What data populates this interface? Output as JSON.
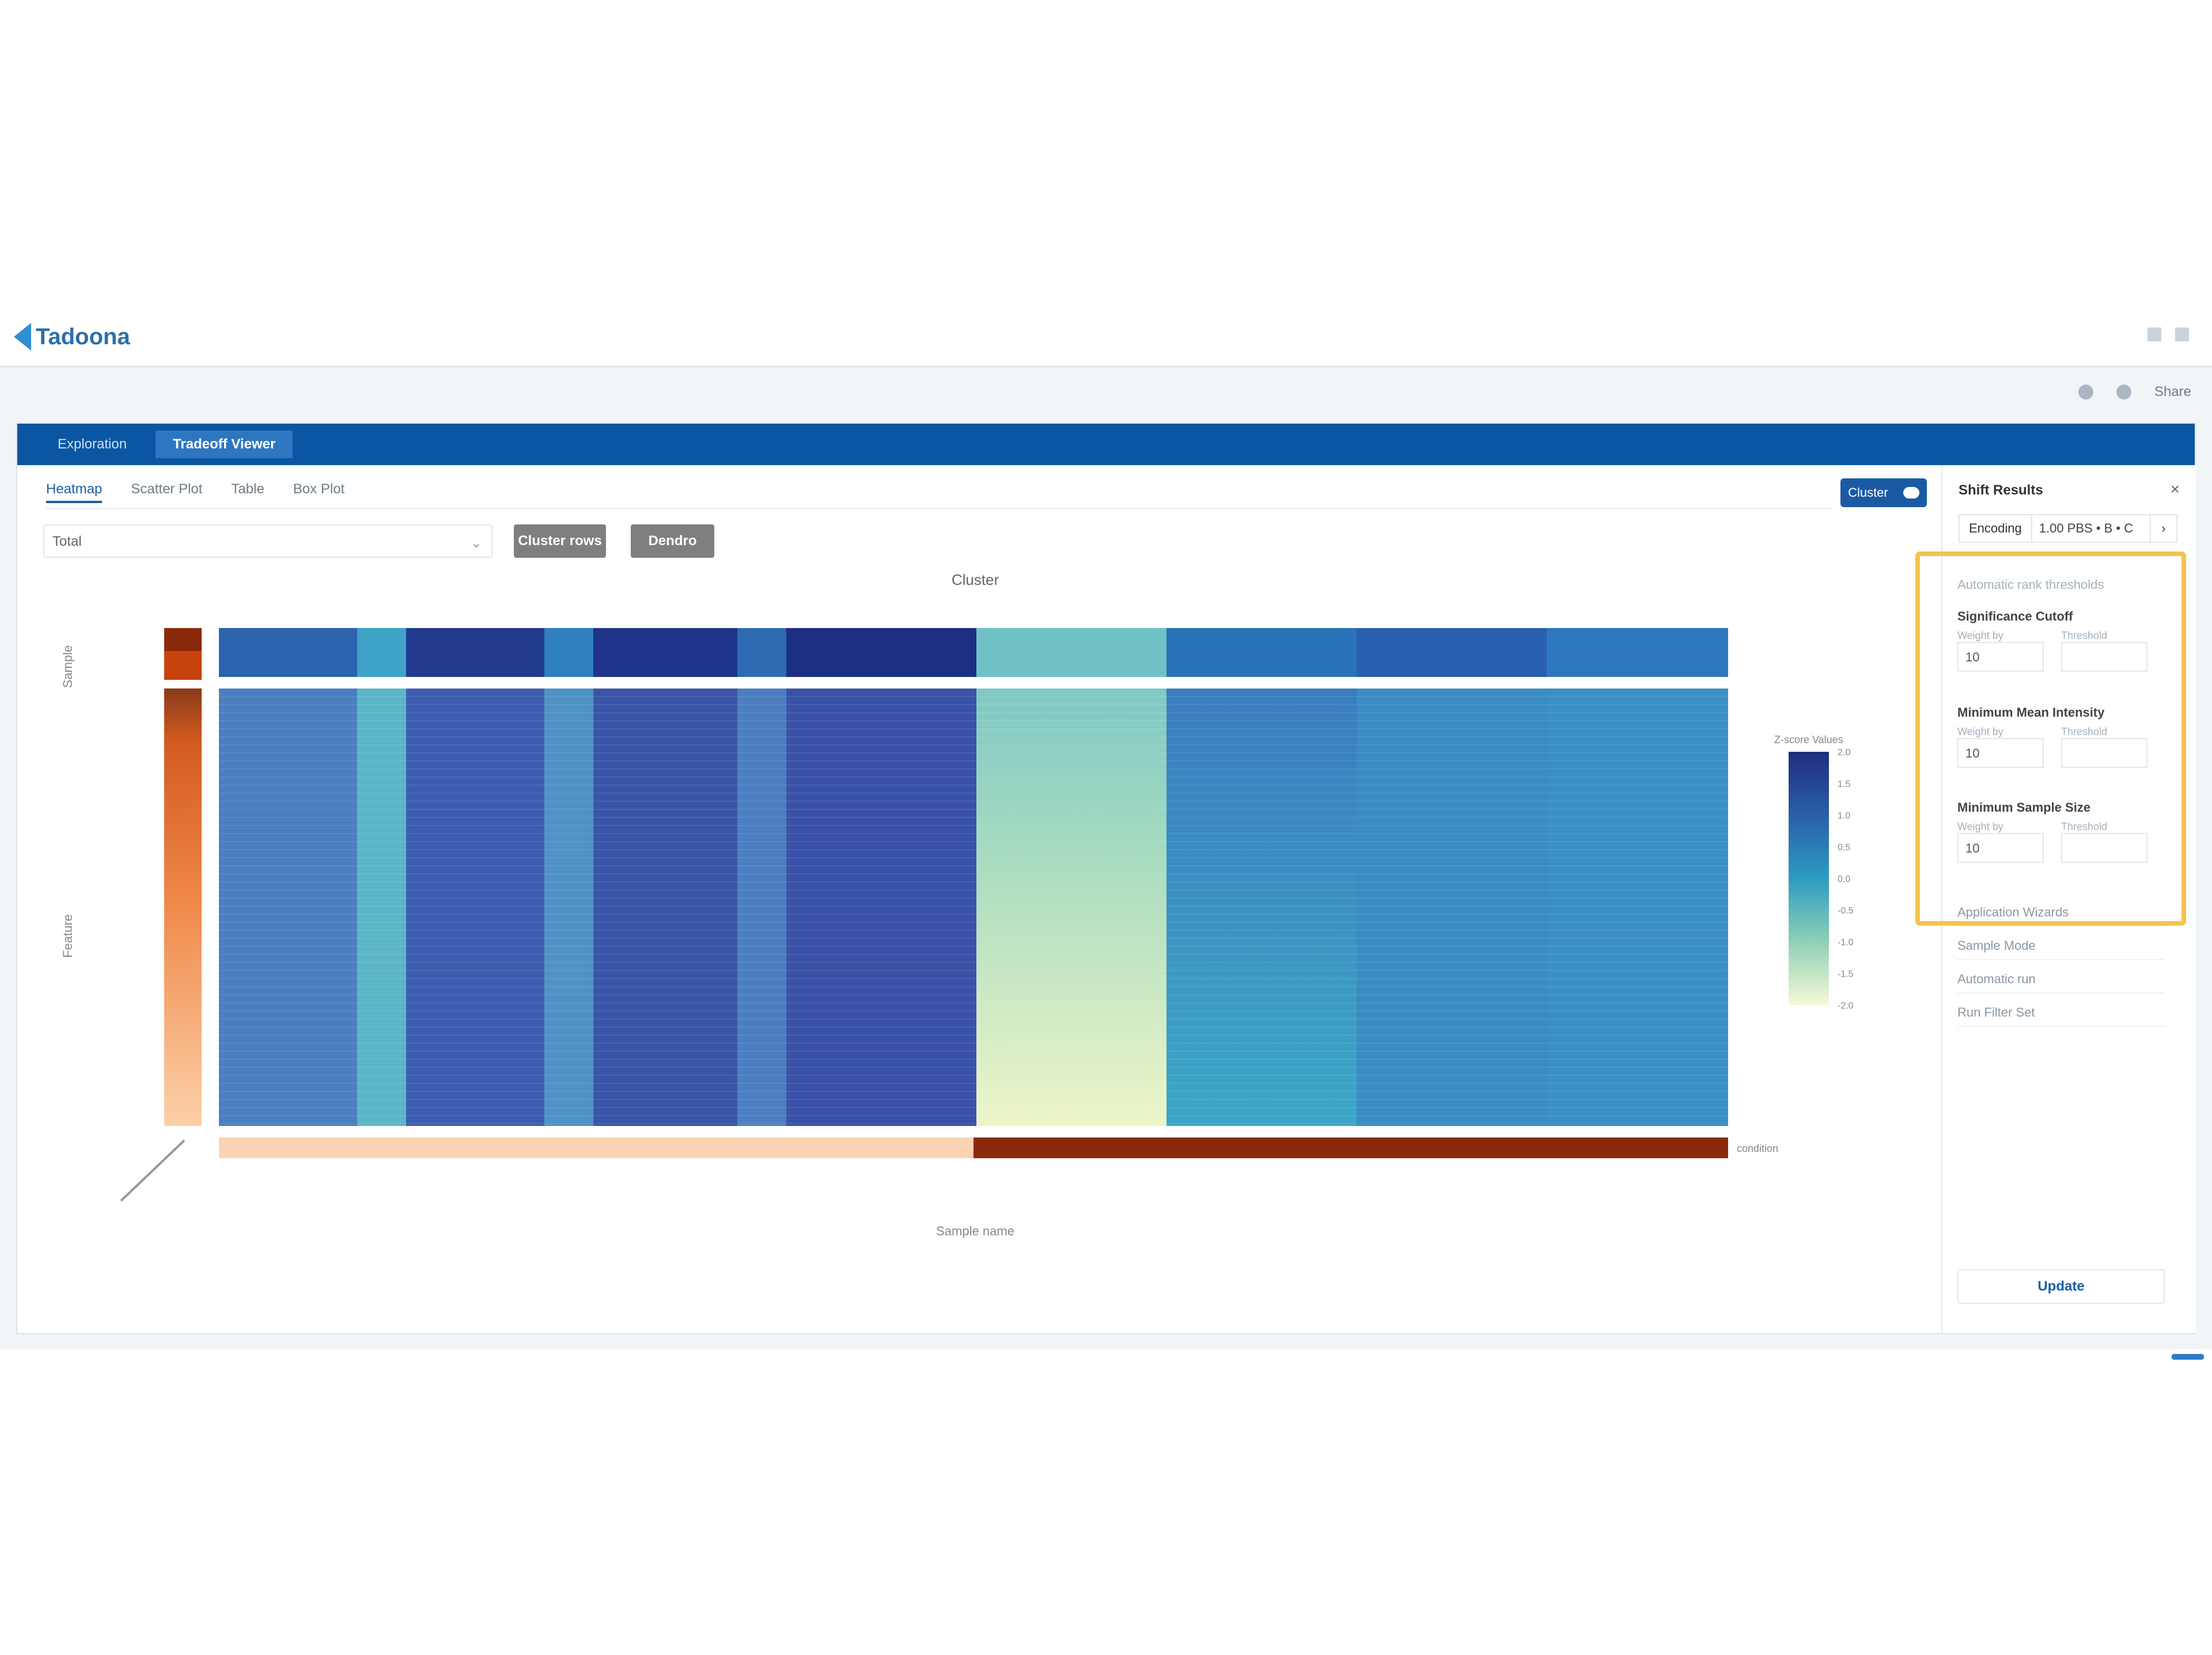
{
  "app": {
    "logo_text": "Tadoona"
  },
  "toolbar": {
    "export_label": "Share"
  },
  "nav": {
    "tabs": [
      {
        "label": "Exploration"
      },
      {
        "label": "Tradeoff Viewer"
      }
    ]
  },
  "view_tabs": [
    {
      "label": "Heatmap"
    },
    {
      "label": "Scatter Plot"
    },
    {
      "label": "Table"
    },
    {
      "label": "Box Plot"
    }
  ],
  "toggle": {
    "label": "Cluster"
  },
  "metric_select": {
    "value": "Total"
  },
  "buttons": {
    "cluster_rows": "Cluster rows",
    "cluster_cols": "Dendro"
  },
  "heatmap": {
    "title": "Cluster",
    "x_axis_label": "Sample name",
    "y_axis_top_label": "Sample",
    "y_axis_label": "Feature",
    "bottom_annotation_label": "condition",
    "legend_title": "Z-score  Values",
    "legend_ticks": [
      "2.0",
      "1.5",
      "1.0",
      "0.5",
      "0.0",
      "-0.5",
      "-1.0",
      "-1.5",
      "-2.0"
    ],
    "colors": {
      "dark": "#1e2d7e",
      "mid": "#2c7fb8",
      "light": "#f5f7cf",
      "cond_a": "#fcd3b4",
      "cond_b": "#8a2a0a"
    }
  },
  "side_panel": {
    "title": "Shift Results",
    "dropdown_key": "Encoding",
    "dropdown_value": "1.00 PBS • B • C",
    "section_label": "Automatic rank thresholds",
    "filters": [
      {
        "title": "Significance Cutoff",
        "left_label": "Weight by",
        "right_label": "Threshold",
        "value": "10"
      },
      {
        "title": "Minimum Mean Intensity",
        "left_label": "Weight by",
        "right_label": "Threshold",
        "value": "10"
      },
      {
        "title": "Minimum Sample Size",
        "left_label": "Weight by",
        "right_label": "Threshold",
        "value": "10"
      }
    ],
    "extra_items": [
      "Application Wizards",
      "Sample Mode",
      "Automatic run",
      "Run Filter Set"
    ],
    "apply_label": "Update"
  }
}
